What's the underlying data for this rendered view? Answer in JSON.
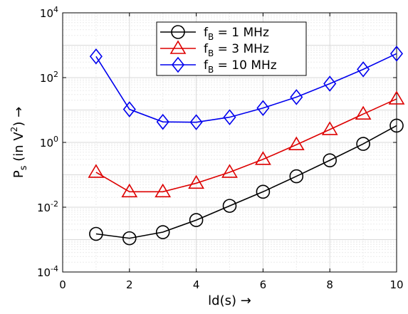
{
  "chart_data": {
    "type": "line",
    "xlabel": "ld(s) →",
    "ylabel": "P_s (in V^2) →",
    "ylabel_parts": {
      "main": "P",
      "sub": "s",
      "open": " (in V",
      "sup": "2",
      "close": ") →"
    },
    "xlim": [
      0,
      10
    ],
    "ylim": [
      0.0001,
      10000
    ],
    "yscale": "log",
    "grid": true,
    "legend_position": "top-center",
    "x_ticks": [
      0,
      2,
      4,
      6,
      8,
      10
    ],
    "y_ticks": [
      {
        "value": 0.0001,
        "base": "10",
        "exp": "-4"
      },
      {
        "value": 0.01,
        "base": "10",
        "exp": "-2"
      },
      {
        "value": 1,
        "base": "10",
        "exp": "0"
      },
      {
        "value": 100,
        "base": "10",
        "exp": "2"
      },
      {
        "value": 10000,
        "base": "10",
        "exp": "4"
      }
    ],
    "x": [
      1,
      2,
      3,
      4,
      5,
      6,
      7,
      8,
      9,
      10
    ],
    "series": [
      {
        "name": "f_B = 1 MHz",
        "legend": {
          "main": "f",
          "sub": "B",
          "rest": " =   1 MHz"
        },
        "color": "#000000",
        "marker": "circle",
        "values": [
          0.0015,
          0.0011,
          0.0017,
          0.004,
          0.011,
          0.03,
          0.09,
          0.28,
          0.9,
          3.3
        ]
      },
      {
        "name": "f_B = 3 MHz",
        "legend": {
          "main": "f",
          "sub": "B",
          "rest": " =   3 MHz"
        },
        "color": "#dd0000",
        "marker": "triangle",
        "values": [
          0.12,
          0.03,
          0.03,
          0.055,
          0.12,
          0.3,
          0.85,
          2.5,
          7.5,
          22.0
        ]
      },
      {
        "name": "f_B = 10 MHz",
        "legend": {
          "main": "f",
          "sub": "B",
          "rest": " = 10 MHz"
        },
        "color": "#0000ee",
        "marker": "diamond",
        "values": [
          450,
          10.5,
          4.3,
          4.2,
          6.0,
          11.5,
          25.0,
          65.0,
          180.0,
          550.0
        ]
      }
    ]
  }
}
